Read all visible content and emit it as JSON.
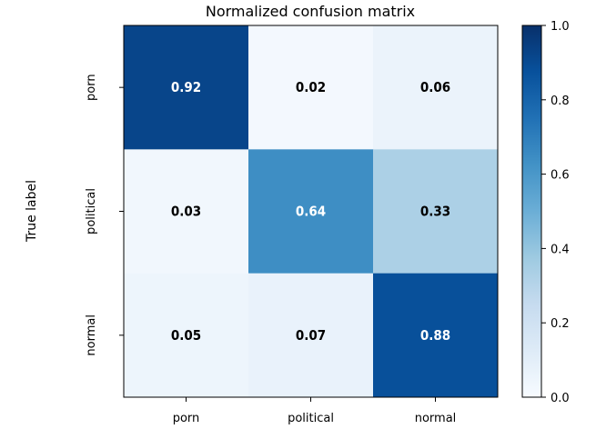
{
  "chart_data": {
    "type": "heatmap",
    "title": "Normalized confusion matrix",
    "ylabel": "True label",
    "xlabel": "",
    "x_categories": [
      "porn",
      "political",
      "normal"
    ],
    "y_categories": [
      "porn",
      "political",
      "normal"
    ],
    "values": [
      [
        0.92,
        0.02,
        0.06
      ],
      [
        0.03,
        0.64,
        0.33
      ],
      [
        0.05,
        0.07,
        0.88
      ]
    ],
    "cell_labels": [
      [
        "0.92",
        "0.02",
        "0.06"
      ],
      [
        "0.03",
        "0.64",
        "0.33"
      ],
      [
        "0.05",
        "0.07",
        "0.88"
      ]
    ],
    "colormap": "Blues",
    "colorbar": {
      "range": [
        0.0,
        1.0
      ],
      "ticks": [
        "0.0",
        "0.2",
        "0.4",
        "0.6",
        "0.8",
        "1.0"
      ]
    },
    "grid": false
  }
}
